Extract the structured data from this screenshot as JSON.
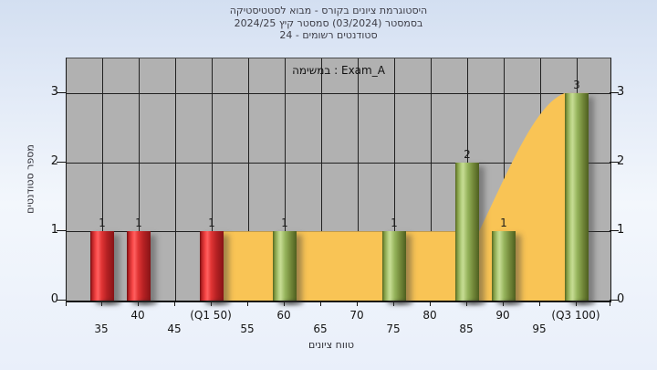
{
  "title": {
    "line1": "היסטוגרמת ציונים בקורס - מבוא לסטטיסטיקה",
    "line2": "בסמסטר (03/2024) סמסטר קיץ 2024/25",
    "line3": "סטודנטים רשומים - 24"
  },
  "legend": {
    "label": "במשימה : Exam_A"
  },
  "y_axis": {
    "title": "מספר סטודנטים",
    "ticks": [
      "0",
      "1",
      "2",
      "3"
    ]
  },
  "x_axis": {
    "title": "טווח ציונים"
  },
  "chart_data": {
    "type": "bar",
    "title": "היסטוגרמת ציונים בקורס - מבוא לסטטיסטיקה בסמסטר (03/2024) סמסטר קיץ 2024/25 | סטודנטים רשומים - 24",
    "series_name": "Exam_A",
    "categories": [
      "35",
      "40",
      "45",
      "(Q1 50)",
      "55",
      "60",
      "65",
      "70",
      "75",
      "80",
      "85",
      "90",
      "95",
      "(Q3 100)"
    ],
    "values": [
      1,
      1,
      0,
      1,
      0,
      1,
      0,
      0,
      1,
      0,
      2,
      1,
      0,
      3
    ],
    "bar_colors": [
      "red",
      "red",
      "",
      "red",
      "",
      "green",
      "",
      "",
      "green",
      "",
      "green",
      "green",
      "",
      "green"
    ],
    "value_labels": [
      "1",
      "1",
      "",
      "1",
      "",
      "1",
      "",
      "",
      "1",
      "",
      "2",
      "1",
      "",
      "3"
    ],
    "xlabel": "טווח ציונים",
    "ylabel": "מספר סטודנטים",
    "ylim": [
      0,
      3.5
    ],
    "yticks": [
      0,
      1,
      2,
      3
    ],
    "grid": true,
    "legend_position": "top-center",
    "area_overlay": {
      "color": "#f9c455",
      "x_range": [
        "(Q1 50)",
        "(Q3 100)"
      ],
      "description": "yellow area: height 1 from (Q1 50) to 85, then curves up to height 3 at (Q3 100)"
    }
  },
  "colors": {
    "bar_red": "#d93030",
    "bar_green": "#93b258",
    "area_yellow": "#f9c455",
    "plot_bg": "#b1b1b1"
  }
}
